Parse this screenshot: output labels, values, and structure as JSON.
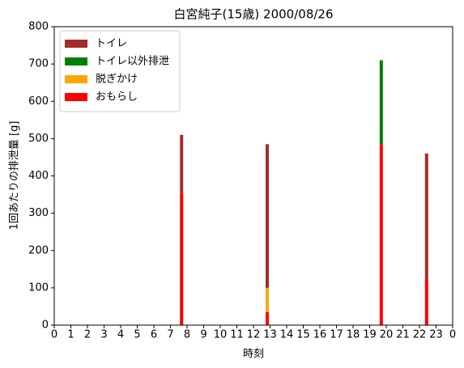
{
  "chart_data": {
    "type": "stacked-bar",
    "title": "白宮純子(15歳) 2000/08/26",
    "x_label": "時刻",
    "y_label": "1回あたりの排泄量 [g]",
    "x": [
      7.67,
      12.83,
      19.7,
      22.43
    ],
    "series": [
      {
        "name": "おもらし",
        "color": "#ff0000",
        "values": [
          355,
          35,
          485,
          125
        ]
      },
      {
        "name": "脱ぎかけ",
        "color": "#ffa500",
        "values": [
          0,
          65,
          0,
          0
        ]
      },
      {
        "name": "トイレ以外排泄",
        "color": "#008000",
        "values": [
          0,
          0,
          225,
          0
        ]
      },
      {
        "name": "トイレ",
        "color": "#a52a2a",
        "values": [
          155,
          385,
          0,
          335
        ]
      }
    ],
    "legend_order": [
      3,
      2,
      1,
      0
    ],
    "legend_position": "upper left",
    "xlim": [
      0,
      24
    ],
    "xticks": [
      0,
      1,
      2,
      3,
      4,
      5,
      6,
      7,
      8,
      9,
      10,
      11,
      12,
      13,
      14,
      15,
      16,
      17,
      18,
      19,
      20,
      21,
      22,
      23,
      {
        "value": 24,
        "label": "0"
      }
    ],
    "ylim": [
      0,
      800
    ],
    "yticks": [
      0,
      100,
      200,
      300,
      400,
      500,
      600,
      700,
      800
    ]
  }
}
